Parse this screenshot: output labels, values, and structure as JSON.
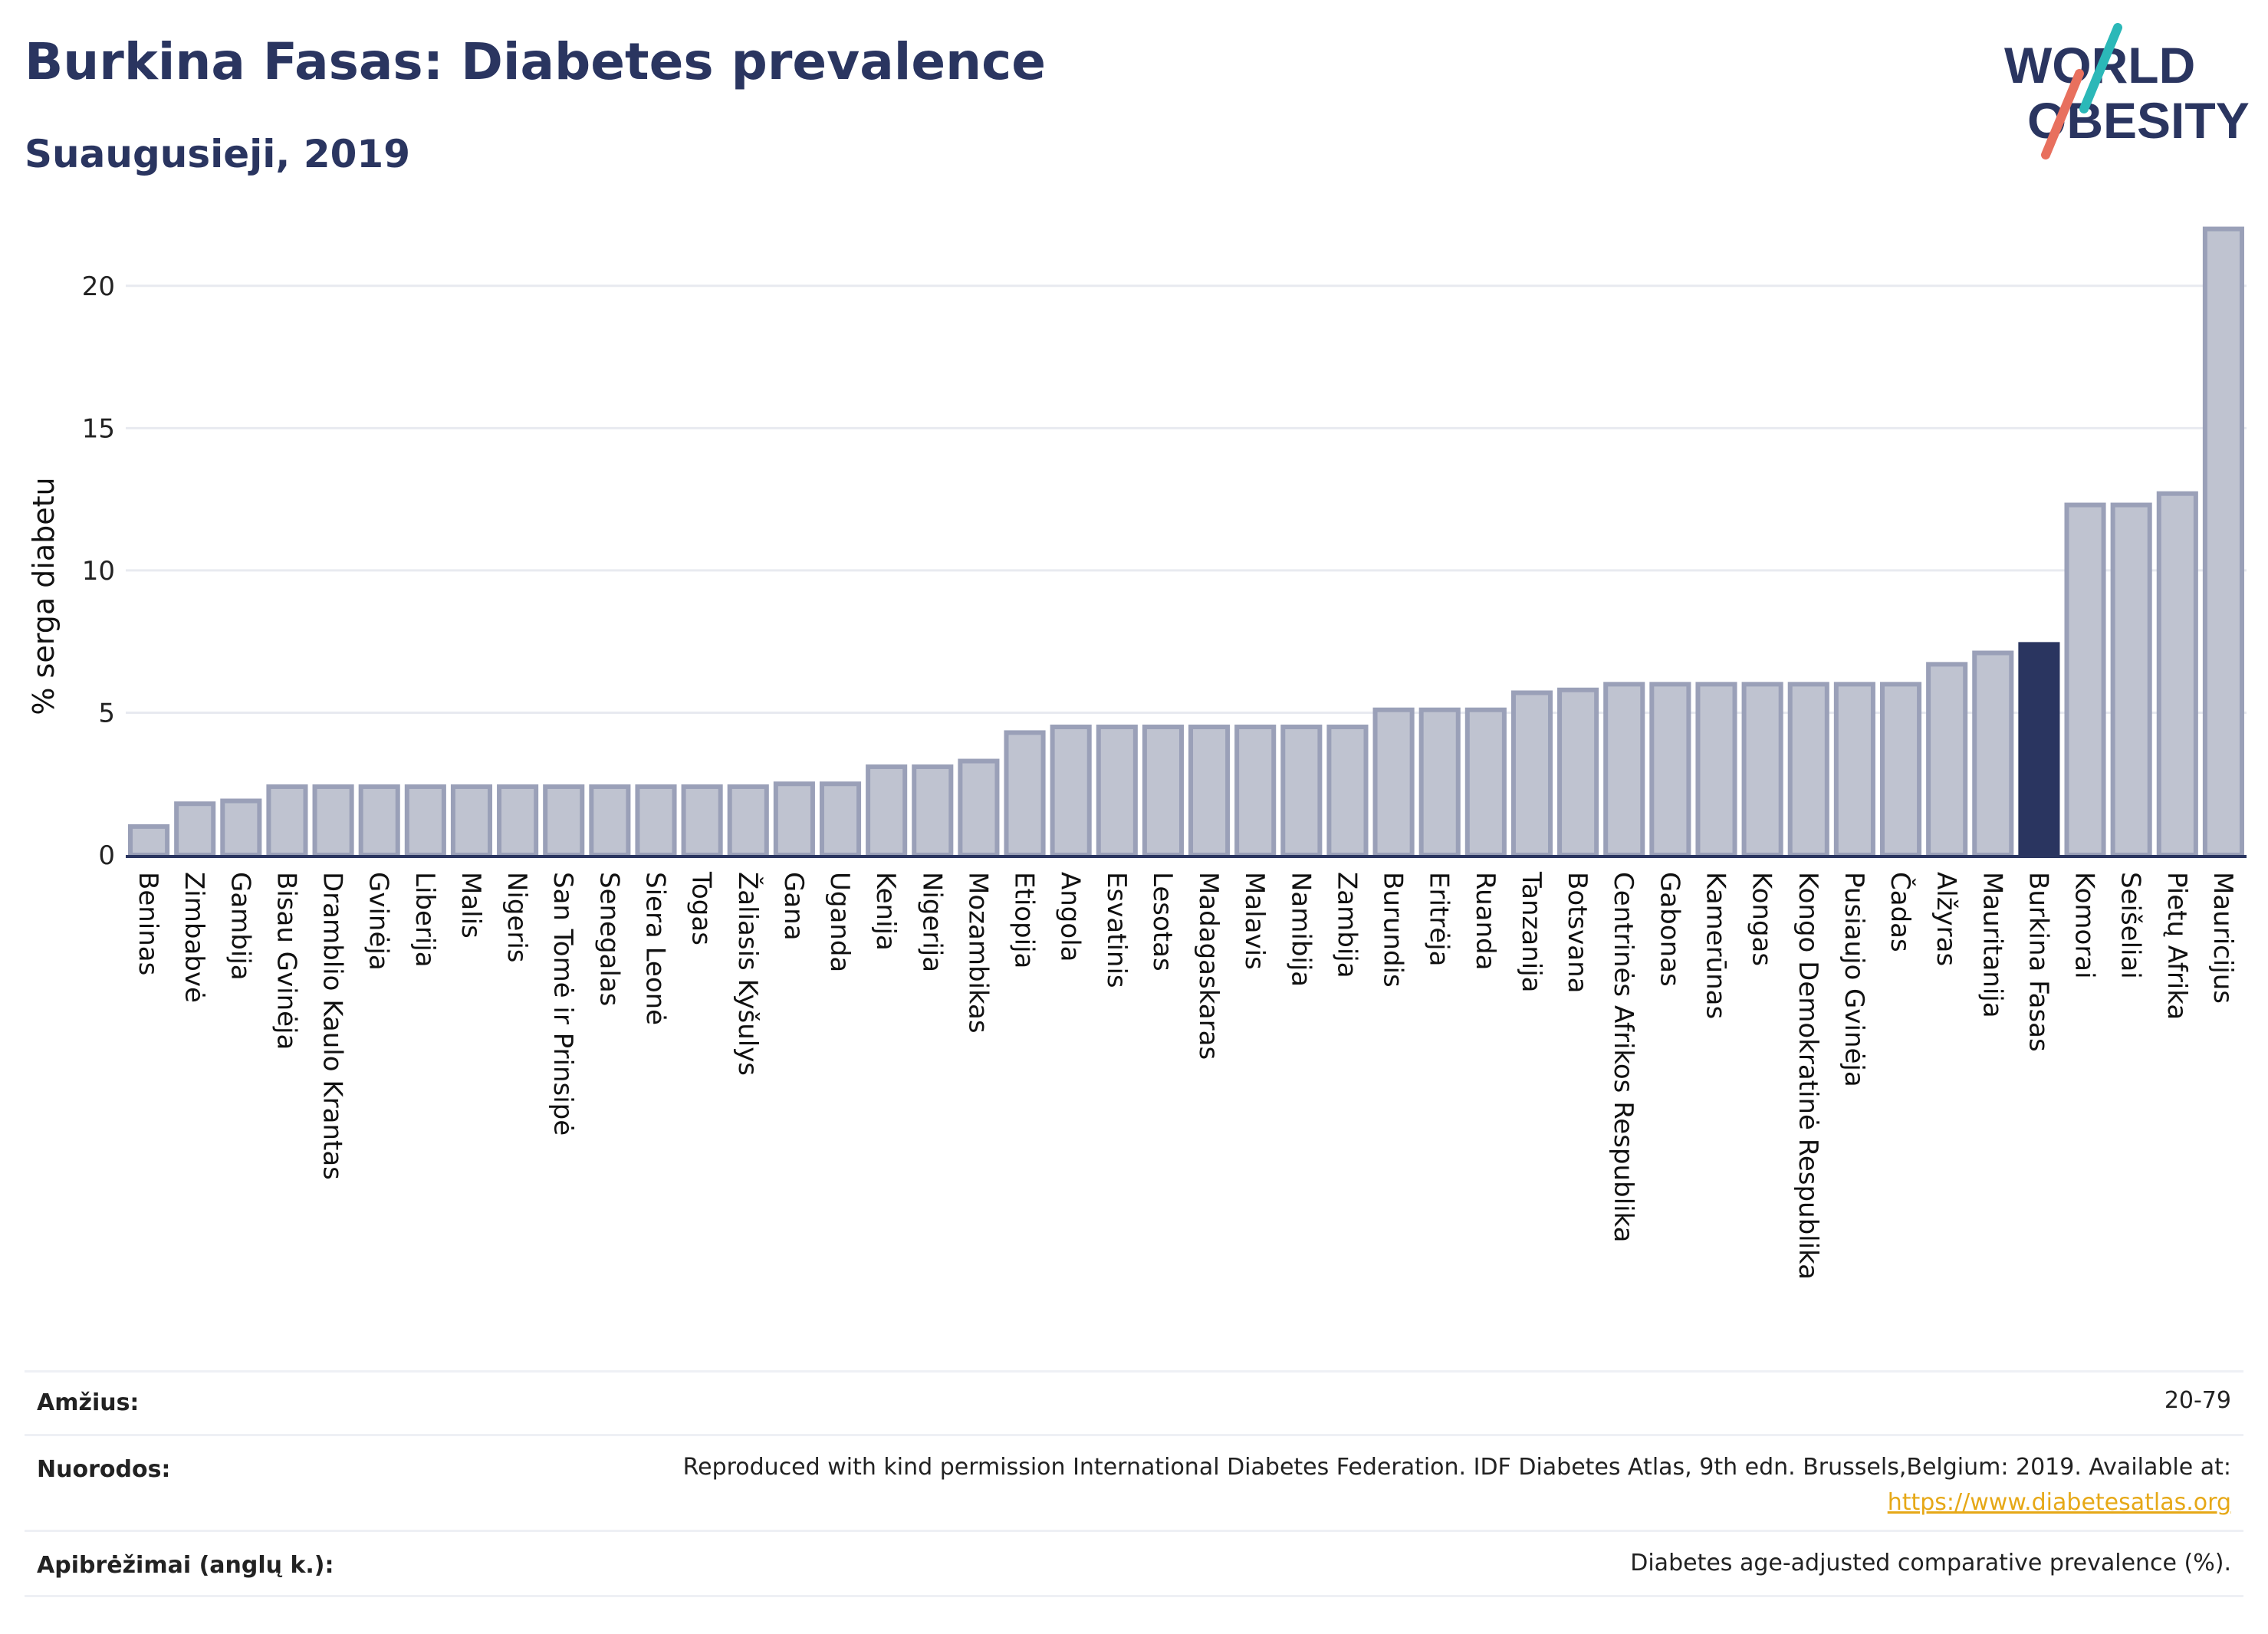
{
  "header": {
    "title": "Burkina Fasas: Diabetes prevalence",
    "subtitle": "Suaugusieji, 2019",
    "logo_line1": "WORLD",
    "logo_line2": "OBESITY"
  },
  "chart_data": {
    "type": "bar",
    "ylabel": "% serga diabetu",
    "xlabel": "",
    "ylim": [
      0,
      22.5
    ],
    "yticks": [
      0,
      5,
      10,
      15,
      20
    ],
    "grid": true,
    "highlight": "Burkina Fasas",
    "colors": {
      "bar": "#bfc3d0",
      "bar_edge": "#9aa0b8",
      "highlight": "#2a3560",
      "grid": "#e8eaf0",
      "axis": "#2a3560"
    },
    "categories": [
      "Beninas",
      "Zimbabvė",
      "Gambija",
      "Bisau Gvinėja",
      "Dramblio Kaulo Krantas",
      "Gvinėja",
      "Liberija",
      "Malis",
      "Nigeris",
      "San Tomė ir Prinsipė",
      "Senegalas",
      "Siera Leonė",
      "Togas",
      "Žaliasis Kyšulys",
      "Gana",
      "Uganda",
      "Kenija",
      "Nigerija",
      "Mozambikas",
      "Etiopija",
      "Angola",
      "Esvatinis",
      "Lesotas",
      "Madagaskaras",
      "Malavis",
      "Namibija",
      "Zambija",
      "Burundis",
      "Eritrėja",
      "Ruanda",
      "Tanzanija",
      "Botsvana",
      "Centrinės Afrikos Respublika",
      "Gabonas",
      "Kamerūnas",
      "Kongas",
      "Kongo Demokratinė Respublika",
      "Pusiaujo Gvinėja",
      "Čadas",
      "Alžyras",
      "Mauritanija",
      "Burkina Fasas",
      "Komorai",
      "Seišeliai",
      "Pietų Afrika",
      "Mauricijus"
    ],
    "values": [
      1.0,
      1.8,
      1.9,
      2.4,
      2.4,
      2.4,
      2.4,
      2.4,
      2.4,
      2.4,
      2.4,
      2.4,
      2.4,
      2.4,
      2.5,
      2.5,
      3.1,
      3.1,
      3.3,
      4.3,
      4.5,
      4.5,
      4.5,
      4.5,
      4.5,
      4.5,
      4.5,
      5.1,
      5.1,
      5.1,
      5.7,
      5.8,
      6.0,
      6.0,
      6.0,
      6.0,
      6.0,
      6.0,
      6.0,
      6.7,
      7.1,
      7.4,
      12.3,
      12.3,
      12.7,
      22.0
    ]
  },
  "meta": {
    "age_label": "Amžius:",
    "age_value": "20-79",
    "refs_label": "Nuorodos:",
    "refs_value": "Reproduced with kind permission International Diabetes Federation. IDF Diabetes Atlas, 9th edn. Brussels,Belgium: 2019. Available at:",
    "refs_link": "https://www.diabetesatlas.org",
    "defs_label": "Apibrėžimai (anglų k.):",
    "defs_value": "Diabetes age-adjusted comparative prevalence (%)."
  }
}
